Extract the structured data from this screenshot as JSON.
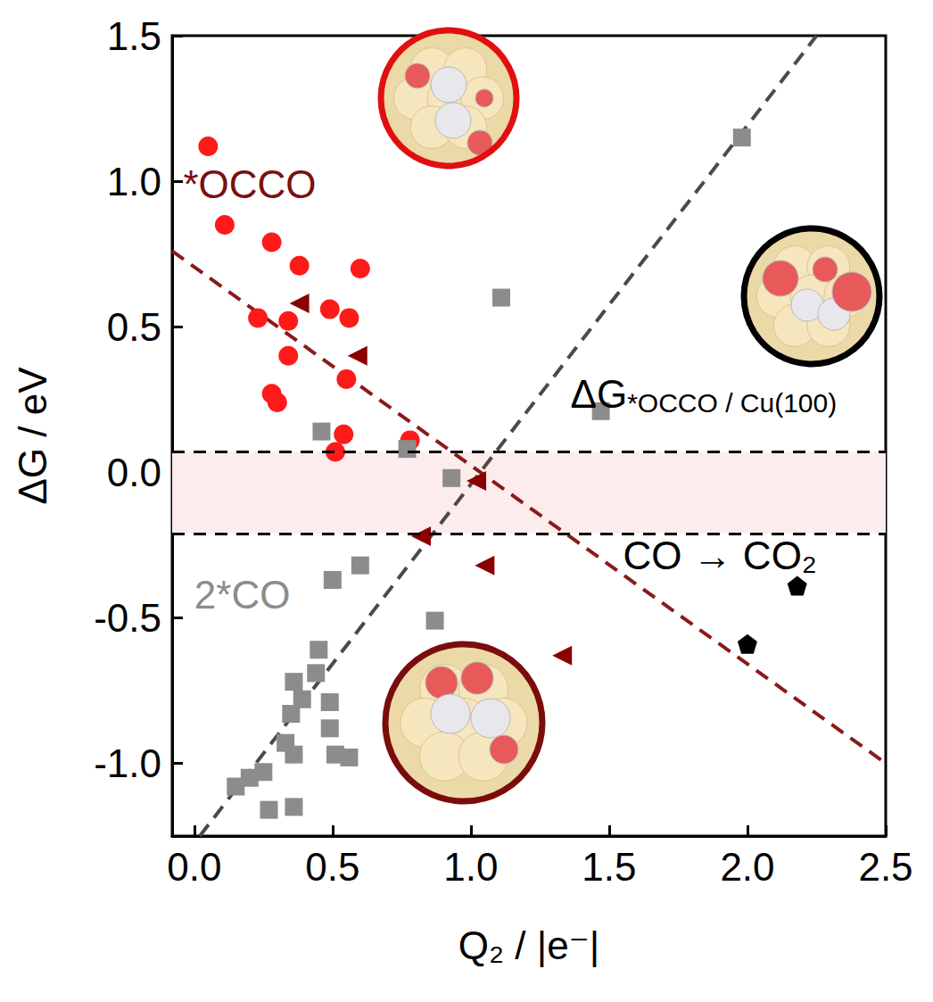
{
  "chart_data": {
    "type": "scatter",
    "x_label": "Q₂ / |e⁻|",
    "y_label": "ΔG / eV",
    "xlim": [
      -0.08,
      2.5
    ],
    "ylim": [
      -1.25,
      1.5
    ],
    "xticks": [
      {
        "value": 0,
        "label": "0.0"
      },
      0.5,
      {
        "value": 1,
        "label": "1.0"
      },
      1.5,
      {
        "value": 2,
        "label": "2.0"
      },
      2.5
    ],
    "yticks": [
      {
        "value": -1,
        "label": "-1.0"
      },
      -0.5,
      {
        "value": 0,
        "label": "0.0"
      },
      0.5,
      {
        "value": 1,
        "label": "1.0"
      },
      1.5
    ],
    "grid": false,
    "band": [
      -0.21,
      0.07
    ],
    "series": [
      {
        "type": "line",
        "line_style": "dashed",
        "color": "#8b1a1a",
        "x": [
          -0.08,
          2.5
        ],
        "values": [
          0.76,
          -1.0
        ]
      },
      {
        "type": "line",
        "line_style": "dashed",
        "color": "#4a4a4a",
        "x": [
          0.02,
          2.25
        ],
        "values": [
          -1.25,
          1.5
        ]
      },
      {
        "type": "scatter",
        "marker": "circle",
        "color": "#ff1a1a",
        "x": [
          0.05,
          0.11,
          0.28,
          0.38,
          0.6,
          0.23,
          0.34,
          0.49,
          0.56,
          0.34,
          0.55,
          0.28,
          0.3,
          0.54,
          0.51,
          0.78
        ],
        "values": [
          1.12,
          0.85,
          0.79,
          0.71,
          0.7,
          0.53,
          0.52,
          0.56,
          0.53,
          0.4,
          0.32,
          0.27,
          0.24,
          0.13,
          0.07,
          0.11
        ]
      },
      {
        "type": "scatter",
        "marker": "triangle-left",
        "color": "#8b0000",
        "x": [
          0.38,
          0.59,
          0.82,
          1.02,
          1.05,
          1.33
        ],
        "values": [
          0.58,
          0.4,
          -0.22,
          -0.03,
          -0.32,
          -0.63
        ]
      },
      {
        "type": "scatter",
        "marker": "square",
        "color": "#8c8c8c",
        "x": [
          0.46,
          0.77,
          0.93,
          1.11,
          1.47,
          1.98,
          0.15,
          0.2,
          0.25,
          0.27,
          0.36,
          0.36,
          0.33,
          0.35,
          0.36,
          0.39,
          0.44,
          0.45,
          0.5,
          0.6,
          0.49,
          0.49,
          0.51,
          0.56,
          0.87
        ],
        "values": [
          0.14,
          0.08,
          -0.02,
          0.6,
          0.21,
          1.15,
          -1.08,
          -1.05,
          -1.03,
          -1.16,
          -1.15,
          -0.97,
          -0.93,
          -0.83,
          -0.72,
          -0.78,
          -0.69,
          -0.61,
          -0.37,
          -0.32,
          -0.79,
          -0.88,
          -0.97,
          -0.98,
          -0.51
        ]
      },
      {
        "type": "scatter",
        "marker": "pentagon",
        "color": "#000000",
        "x": [
          2.0,
          2.18
        ],
        "values": [
          -0.59,
          -0.39
        ]
      }
    ],
    "annotations": [
      {
        "text": "*OCCO",
        "color": "#7a1010",
        "x": -0.04,
        "y": 0.99
      },
      {
        "text": "2*CO",
        "color": "#8c8c8c",
        "x": 0.0,
        "y": -0.42
      },
      {
        "text": "ΔG",
        "subscript": "*OCCO / Cu(100)",
        "color": "#000000",
        "x": 1.36,
        "y": 0.27
      },
      {
        "text": "CO → CO₂",
        "color": "#000000",
        "x": 1.55,
        "y": -0.285
      }
    ]
  }
}
